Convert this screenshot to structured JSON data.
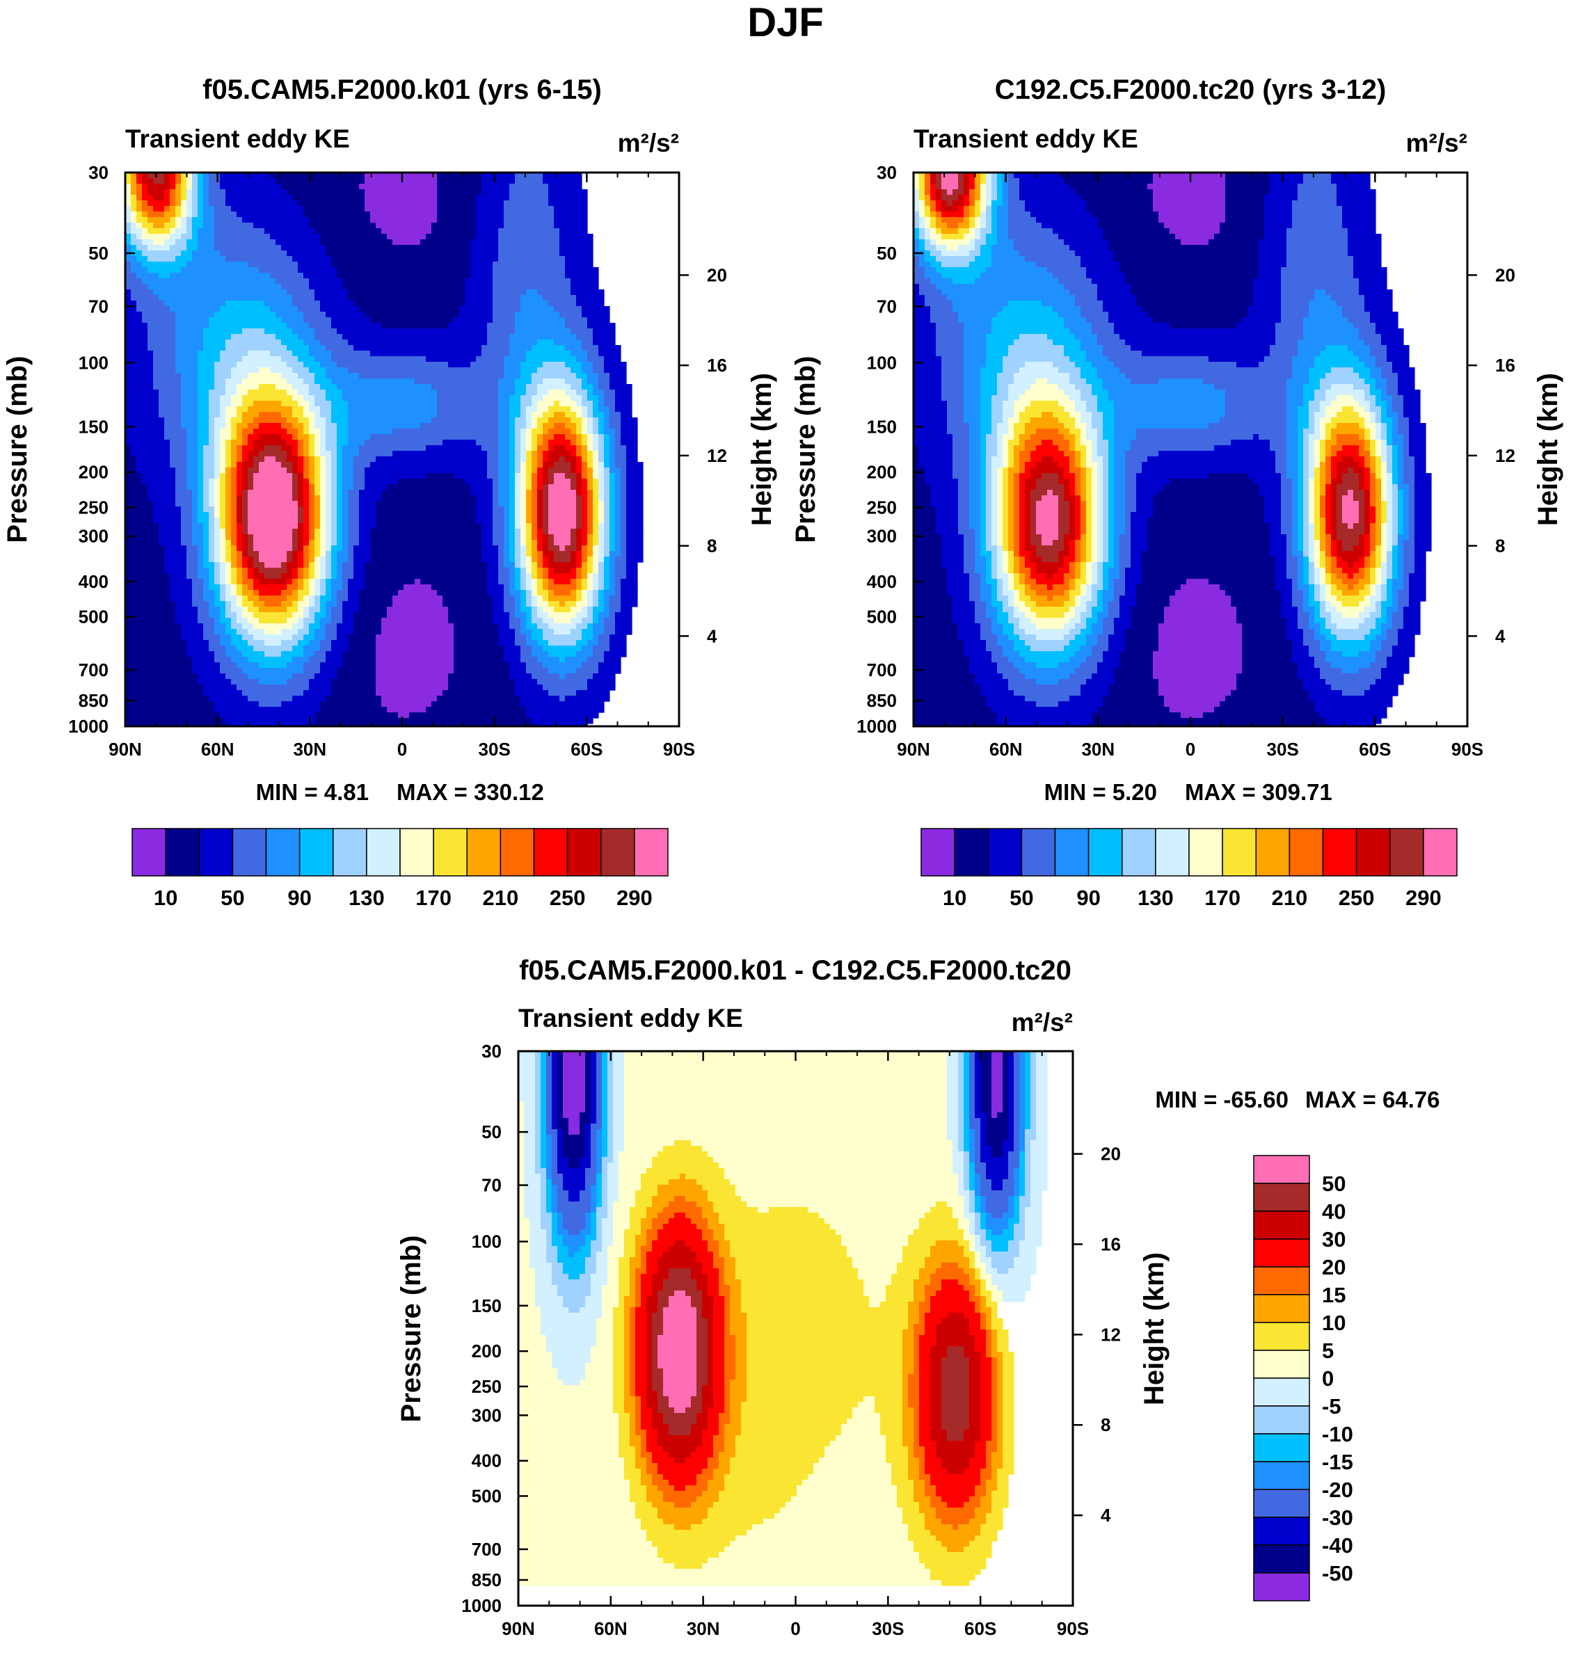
{
  "figure_title": "DJF",
  "colors": {
    "abs_scale": [
      "#8a2be2",
      "#00008b",
      "#0000cd",
      "#4169e1",
      "#1e90ff",
      "#00bfff",
      "#a0d2ff",
      "#d2f0ff",
      "#ffffcd",
      "#fae632",
      "#ffa500",
      "#ff6a00",
      "#ff0000",
      "#cd0000",
      "#a52a2a",
      "#ff6eb4"
    ],
    "diff_scale": [
      "#8a2be2",
      "#00008b",
      "#0000cd",
      "#4169e1",
      "#1e90ff",
      "#00bfff",
      "#a0d2ff",
      "#d2f0ff",
      "#ffffcd",
      "#fae632",
      "#ffa500",
      "#ff6a00",
      "#ff0000",
      "#cd0000",
      "#a52a2a",
      "#ff6eb4"
    ]
  },
  "chart_data": [
    {
      "type": "heatmap",
      "title": "f05.CAM5.F2000.k01 (yrs 6-15)",
      "left_label": "Transient eddy KE",
      "right_label": "m²/s²",
      "ylabel": "Pressure (mb)",
      "y2label": "Height (km)",
      "xtick_labels": [
        "90N",
        "60N",
        "30N",
        "0",
        "30S",
        "60S",
        "90S"
      ],
      "x": [
        90,
        60,
        30,
        0,
        -30,
        -60,
        -90
      ],
      "ytick_labels": [
        "30",
        "50",
        "70",
        "100",
        "150",
        "200",
        "250",
        "300",
        "400",
        "500",
        "700",
        "850",
        "1000"
      ],
      "y2tick_labels": [
        "20",
        "16",
        "12",
        "8",
        "4"
      ],
      "ylim": [
        1000,
        30
      ],
      "min_label": "MIN =   4.81",
      "max_label": "MAX = 330.12",
      "min": 4.81,
      "max": 330.12,
      "levels": [
        10,
        30,
        50,
        70,
        90,
        110,
        130,
        150,
        170,
        190,
        210,
        230,
        250,
        270,
        290
      ],
      "colorbar_labels": [
        "10",
        "50",
        "90",
        "130",
        "170",
        "210",
        "250",
        "290"
      ],
      "features": [
        {
          "kind": "jet",
          "lat": 42,
          "p": 270,
          "peak": 330
        },
        {
          "kind": "jet",
          "lat": -52,
          "p": 260,
          "peak": 310
        },
        {
          "kind": "polar-strat",
          "lat": 80,
          "p": 30,
          "peak": 270
        }
      ]
    },
    {
      "type": "heatmap",
      "title": "C192.C5.F2000.tc20 (yrs 3-12)",
      "left_label": "Transient eddy KE",
      "right_label": "m²/s²",
      "ylabel": "Pressure (mb)",
      "y2label": "Height (km)",
      "xtick_labels": [
        "90N",
        "60N",
        "30N",
        "0",
        "30S",
        "60S",
        "90S"
      ],
      "x": [
        90,
        60,
        30,
        0,
        -30,
        -60,
        -90
      ],
      "ytick_labels": [
        "30",
        "50",
        "70",
        "100",
        "150",
        "200",
        "250",
        "300",
        "400",
        "500",
        "700",
        "850",
        "1000"
      ],
      "y2tick_labels": [
        "20",
        "16",
        "12",
        "8",
        "4"
      ],
      "ylim": [
        1000,
        30
      ],
      "min_label": "MIN =   5.20",
      "max_label": "MAX = 309.71",
      "min": 5.2,
      "max": 309.71,
      "levels": [
        10,
        30,
        50,
        70,
        90,
        110,
        130,
        150,
        170,
        190,
        210,
        230,
        250,
        270,
        290
      ],
      "colorbar_labels": [
        "10",
        "50",
        "90",
        "130",
        "170",
        "210",
        "250",
        "290"
      ],
      "features": [
        {
          "kind": "jet",
          "lat": 46,
          "p": 280,
          "peak": 290
        },
        {
          "kind": "jet",
          "lat": -52,
          "p": 260,
          "peak": 290
        },
        {
          "kind": "polar-strat",
          "lat": 78,
          "p": 30,
          "peak": 300
        }
      ]
    },
    {
      "type": "heatmap",
      "title": "f05.CAM5.F2000.k01 - C192.C5.F2000.tc20",
      "left_label": "Transient eddy KE",
      "right_label": "m²/s²",
      "ylabel": "Pressure (mb)",
      "y2label": "Height (km)",
      "xtick_labels": [
        "90N",
        "60N",
        "30N",
        "0",
        "30S",
        "60S",
        "90S"
      ],
      "x": [
        90,
        60,
        30,
        0,
        -30,
        -60,
        -90
      ],
      "ytick_labels": [
        "30",
        "50",
        "70",
        "100",
        "150",
        "200",
        "250",
        "300",
        "400",
        "500",
        "700",
        "850",
        "1000"
      ],
      "y2tick_labels": [
        "20",
        "16",
        "12",
        "8",
        "4"
      ],
      "ylim": [
        1000,
        30
      ],
      "min_label": "MIN = -65.60",
      "max_label": "MAX =  64.76",
      "min": -65.6,
      "max": 64.76,
      "levels": [
        -50,
        -40,
        -30,
        -20,
        -15,
        -10,
        -5,
        0,
        5,
        10,
        15,
        20,
        30,
        40,
        50
      ],
      "colorbar_labels": [
        "50",
        "40",
        "30",
        "20",
        "15",
        "10",
        "5",
        "0",
        "-5",
        "-10",
        "-15",
        "-20",
        "-30",
        "-40",
        "-50"
      ],
      "features": [
        {
          "kind": "positive-max",
          "lat": 38,
          "p": 200,
          "peak": 60
        },
        {
          "kind": "positive-max",
          "lat": -52,
          "p": 260,
          "peak": 45
        },
        {
          "kind": "negative-min",
          "lat": 72,
          "p": 35,
          "peak": -60
        },
        {
          "kind": "negative-min",
          "lat": -65,
          "p": 35,
          "peak": -55
        }
      ]
    }
  ]
}
